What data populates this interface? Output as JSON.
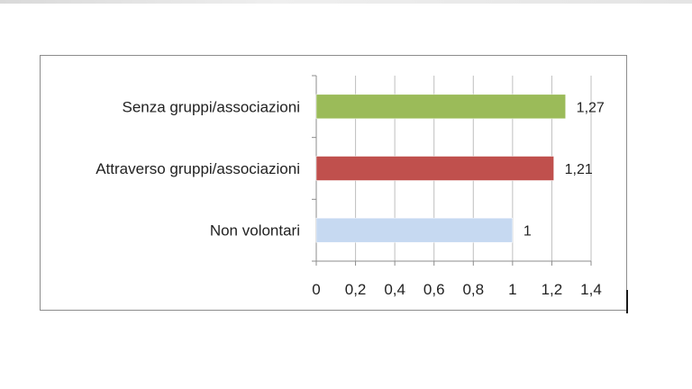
{
  "chart_data": {
    "type": "bar",
    "orientation": "horizontal",
    "title": "",
    "xlabel": "",
    "ylabel": "",
    "categories": [
      "Senza gruppi/associazioni",
      "Attraverso gruppi/associazioni",
      "Non volontari"
    ],
    "values": [
      1.27,
      1.21,
      1
    ],
    "value_labels": [
      "1,27",
      "1,21",
      "1"
    ],
    "colors": [
      "#9bbb59",
      "#c0504d",
      "#c6d9f1"
    ],
    "xlim": [
      0,
      1.4
    ],
    "xticks": [
      0,
      0.2,
      0.4,
      0.6,
      0.8,
      1,
      1.2,
      1.4
    ],
    "xtick_labels": [
      "0",
      "0,2",
      "0,4",
      "0,6",
      "0,8",
      "1",
      "1,2",
      "1,4"
    ],
    "grid": "vertical",
    "legend": "none"
  }
}
